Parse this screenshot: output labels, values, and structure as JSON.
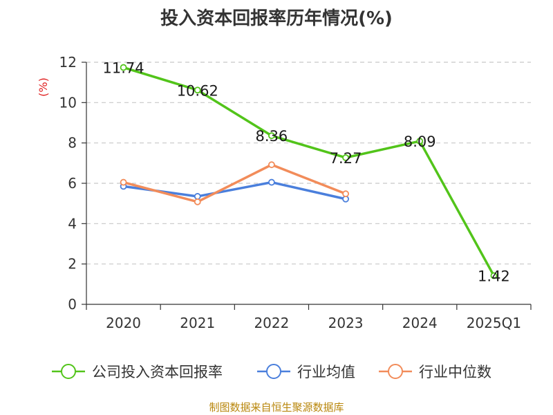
{
  "title": "投入资本回报率历年情况(%)",
  "source": "制图数据来自恒生聚源数据库",
  "chart_data": {
    "type": "line",
    "title": "投入资本回报率历年情况(%)",
    "ylabel": "(%)",
    "xlabel": "",
    "categories": [
      "2020",
      "2021",
      "2022",
      "2023",
      "2024",
      "2025Q1"
    ],
    "ylim": [
      0,
      12
    ],
    "yticks": [
      0,
      2,
      4,
      6,
      8,
      10,
      12
    ],
    "grid": true,
    "legend_position": "bottom",
    "series": [
      {
        "name": "公司投入资本回报率",
        "color": "#52c41a",
        "values": [
          11.74,
          10.62,
          8.36,
          7.27,
          8.09,
          1.42
        ],
        "labels": true
      },
      {
        "name": "行业均值",
        "color": "#4a7fdc",
        "values": [
          5.85,
          5.35,
          6.05,
          5.22,
          null,
          null
        ],
        "labels": false
      },
      {
        "name": "行业中位数",
        "color": "#f28c5a",
        "values": [
          6.05,
          5.08,
          6.92,
          5.48,
          null,
          null
        ],
        "labels": false
      }
    ]
  }
}
